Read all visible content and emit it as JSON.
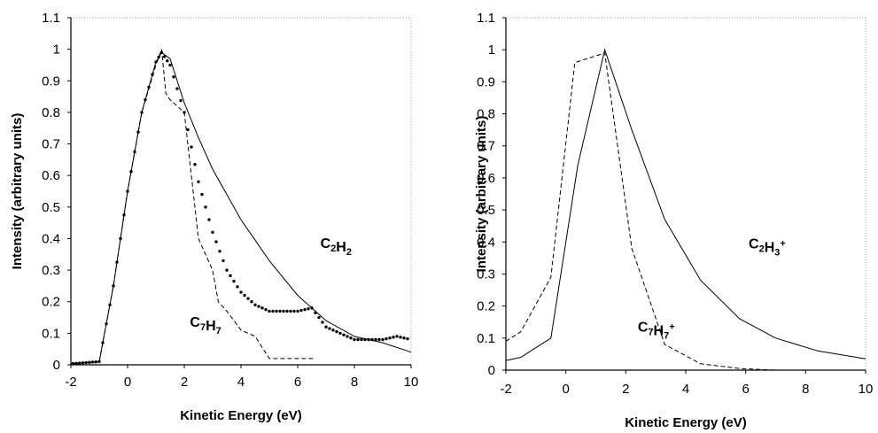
{
  "chart_data": [
    {
      "type": "line",
      "xlabel": "Kinetic Energy (eV)",
      "ylabel": "Intensity (arbitrary units)",
      "xlim": [
        -2,
        10
      ],
      "ylim": [
        0,
        1.1
      ],
      "xticks": [
        "-2",
        "0",
        "2",
        "4",
        "6",
        "8",
        "10"
      ],
      "yticks": [
        "0",
        "0.1",
        "0.2",
        "0.3",
        "0.4",
        "0.5",
        "0.6",
        "0.7",
        "0.8",
        "0.9",
        "1",
        "1.1"
      ],
      "grid": false,
      "series": [
        {
          "name": "C2H2",
          "label_main": "C",
          "label_parts": [
            [
              "C",
              ""
            ],
            [
              "2",
              "sub"
            ],
            [
              "H",
              ""
            ],
            [
              "2",
              "sub"
            ]
          ],
          "style": "solid",
          "x": [
            -2.5,
            -1.0,
            -0.5,
            0.0,
            0.5,
            1.0,
            1.2,
            1.5,
            2.0,
            2.5,
            3.0,
            3.5,
            4.0,
            5.0,
            6.0,
            7.0,
            8.0,
            9.0,
            10.0
          ],
          "y": [
            0.0,
            0.01,
            0.25,
            0.55,
            0.8,
            0.96,
            0.99,
            0.97,
            0.83,
            0.72,
            0.62,
            0.54,
            0.46,
            0.33,
            0.22,
            0.14,
            0.09,
            0.07,
            0.04
          ]
        },
        {
          "name": "dotted",
          "style": "dotted",
          "x": [
            -2.5,
            -1.0,
            -0.5,
            0.0,
            0.5,
            1.0,
            1.2,
            1.5,
            2.0,
            2.5,
            3.0,
            3.5,
            4.0,
            4.5,
            5.0,
            5.5,
            6.0,
            6.5,
            7.0,
            7.5,
            8.0,
            8.5,
            9.0,
            9.5,
            10.0
          ],
          "y": [
            0.0,
            0.01,
            0.25,
            0.55,
            0.8,
            0.96,
            0.99,
            0.95,
            0.8,
            0.58,
            0.42,
            0.3,
            0.23,
            0.19,
            0.17,
            0.17,
            0.17,
            0.18,
            0.12,
            0.1,
            0.08,
            0.08,
            0.08,
            0.09,
            0.08
          ]
        },
        {
          "name": "C7H7",
          "label_parts": [
            [
              "C",
              ""
            ],
            [
              "7",
              "sub"
            ],
            [
              "H",
              ""
            ],
            [
              "7",
              "sub"
            ]
          ],
          "style": "dashed",
          "x": [
            -2.5,
            -1.0,
            -0.5,
            0.0,
            0.5,
            1.0,
            1.2,
            1.35,
            1.5,
            2.0,
            2.5,
            3.0,
            3.2,
            3.5,
            4.0,
            4.5,
            5.0,
            6.6
          ],
          "y": [
            0.0,
            0.01,
            0.25,
            0.55,
            0.8,
            0.95,
            1.0,
            0.86,
            0.84,
            0.8,
            0.4,
            0.3,
            0.2,
            0.17,
            0.11,
            0.09,
            0.02,
            0.02
          ]
        }
      ],
      "annotations": [
        {
          "text": "C2H2",
          "x": 6.8,
          "y": 0.37
        },
        {
          "text": "C7H7",
          "x": 2.2,
          "y": 0.12
        }
      ]
    },
    {
      "type": "line",
      "xlabel": "Kinetic Energy (eV)",
      "ylabel": "Intensity (arbitrary units)",
      "xlim": [
        -2,
        10
      ],
      "ylim": [
        0,
        1.1
      ],
      "xticks": [
        "-2",
        "0",
        "2",
        "4",
        "6",
        "8",
        "10"
      ],
      "yticks": [
        "0",
        "0.1",
        "0.2",
        "0.3",
        "0.4",
        "0.5",
        "0.6",
        "0.7",
        "0.8",
        "0.9",
        "1",
        "1.1"
      ],
      "grid": false,
      "series": [
        {
          "name": "C2H3+",
          "label_parts": [
            [
              "C",
              ""
            ],
            [
              "2",
              "sub"
            ],
            [
              "H",
              ""
            ],
            [
              "3",
              "sub"
            ],
            [
              "+",
              "sup"
            ]
          ],
          "style": "solid",
          "x": [
            -2.0,
            -1.5,
            -0.5,
            0.4,
            1.3,
            2.2,
            3.3,
            4.5,
            5.8,
            7.0,
            8.4,
            10.0
          ],
          "y": [
            0.03,
            0.04,
            0.1,
            0.64,
            1.0,
            0.75,
            0.47,
            0.28,
            0.16,
            0.1,
            0.06,
            0.035
          ]
        },
        {
          "name": "C7H7+",
          "label_parts": [
            [
              "C",
              ""
            ],
            [
              "7",
              "sub"
            ],
            [
              "H",
              ""
            ],
            [
              "7",
              "sub"
            ],
            [
              "+",
              "sup"
            ]
          ],
          "style": "dashed",
          "x": [
            -2.0,
            -1.5,
            -0.5,
            0.3,
            1.3,
            2.2,
            3.3,
            4.5,
            5.8,
            7.0,
            10.0
          ],
          "y": [
            0.09,
            0.12,
            0.29,
            0.96,
            0.99,
            0.38,
            0.08,
            0.02,
            0.005,
            0.0,
            0.0
          ]
        }
      ],
      "annotations": [
        {
          "text": "C2H3+",
          "x": 6.1,
          "y": 0.38
        },
        {
          "text": "C7H7+",
          "x": 2.4,
          "y": 0.12
        }
      ]
    }
  ]
}
